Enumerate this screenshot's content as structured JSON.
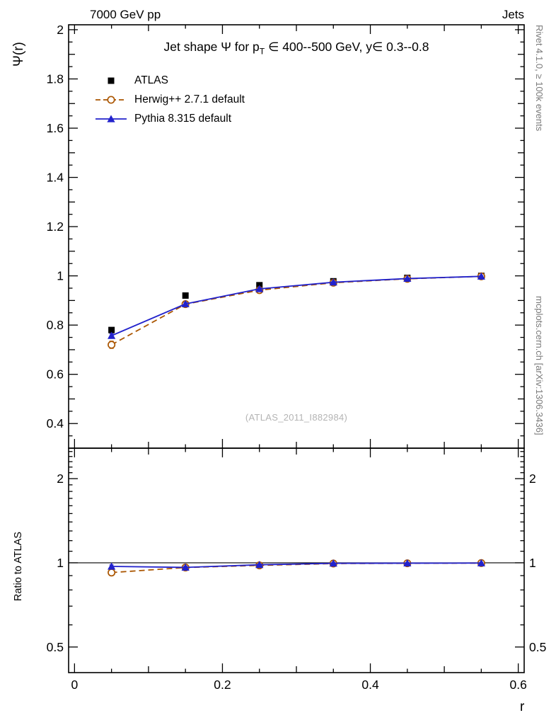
{
  "page": {
    "header_left": "7000 GeV pp",
    "header_right": "Jets",
    "watermark": "(ATLAS_2011_I882984)",
    "side_note_top": "Rivet 4.1.0, ≥ 100k events",
    "side_note_bottom": "mcplots.cern.ch [arXiv:1306.3436]"
  },
  "title": {
    "pre": "Jet shape Ψ for p",
    "sub": "T",
    "post": " ∈ 400--500 GeV, y∈ 0.3--0.8"
  },
  "colors": {
    "atlas": "#000000",
    "herwig": "#aa5500",
    "pythia": "#2222cc",
    "caption_gray": "#7a7a7a",
    "watermark_gray": "#b4b4b4"
  },
  "chart_data": [
    {
      "type": "scatter",
      "panel": "main",
      "title": "Jet shape Ψ for pT ∈ 400--500 GeV, y ∈ 0.3--0.8",
      "xlabel": "r",
      "ylabel": "Ψ(r)",
      "xlim": [
        -0.008,
        0.608
      ],
      "ylim": [
        0.3,
        2.02
      ],
      "xticks": [
        0,
        0.2,
        0.4,
        0.6
      ],
      "yticks": [
        0.4,
        0.6,
        0.8,
        1,
        1.2,
        1.4,
        1.6,
        1.8,
        2
      ],
      "grid": false,
      "legend_position": "upper-left",
      "x": [
        0.05,
        0.15,
        0.25,
        0.35,
        0.45,
        0.55
      ],
      "series": [
        {
          "name": "ATLAS",
          "marker": "square",
          "line": "none",
          "color": "#000000",
          "values": [
            0.78,
            0.92,
            0.962,
            0.978,
            0.992,
            1.0
          ],
          "yerr": [
            0.01,
            0.008,
            0.006,
            0.005,
            0.004,
            0.004
          ]
        },
        {
          "name": "Herwig++ 2.7.1 default",
          "marker": "open-circle",
          "line": "dashed",
          "color": "#aa5500",
          "values": [
            0.72,
            0.885,
            0.942,
            0.972,
            0.988,
            0.998
          ],
          "yerr": [
            0.015,
            0.008,
            0.006,
            0.005,
            0.004,
            0.004
          ]
        },
        {
          "name": "Pythia 8.315 default",
          "marker": "triangle",
          "line": "solid",
          "color": "#2222cc",
          "values": [
            0.757,
            0.886,
            0.947,
            0.974,
            0.989,
            0.998
          ],
          "yerr": [
            0.008,
            0.006,
            0.005,
            0.004,
            0.003,
            0.003
          ]
        }
      ]
    },
    {
      "type": "line",
      "panel": "ratio",
      "ylabel": "Ratio to ATLAS",
      "yscale": "log",
      "xlim": [
        -0.008,
        0.608
      ],
      "ylim": [
        0.405,
        2.57
      ],
      "yticks": [
        0.5,
        1,
        2
      ],
      "reference_line": 1,
      "x": [
        0.05,
        0.15,
        0.25,
        0.35,
        0.45,
        0.55
      ],
      "series": [
        {
          "name": "Herwig++ 2.7.1 default",
          "marker": "open-circle",
          "line": "dashed",
          "color": "#aa5500",
          "values": [
            0.923,
            0.962,
            0.979,
            0.994,
            0.996,
            0.998
          ],
          "yerr": [
            0.02,
            0.012,
            0.009,
            0.007,
            0.006,
            0.005
          ]
        },
        {
          "name": "Pythia 8.315 default",
          "marker": "triangle",
          "line": "solid",
          "color": "#2222cc",
          "values": [
            0.971,
            0.963,
            0.984,
            0.996,
            0.997,
            0.998
          ],
          "yerr": [
            0.012,
            0.009,
            0.007,
            0.006,
            0.005,
            0.005
          ]
        }
      ]
    }
  ]
}
